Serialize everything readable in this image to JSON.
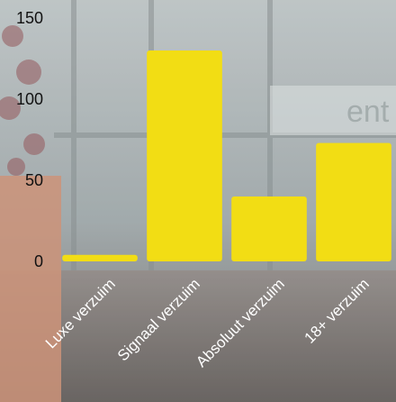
{
  "chart_data": {
    "type": "bar",
    "categories": [
      "Luxe verzuim",
      "Signaal verzuim",
      "Absoluut verzuim",
      "18+ verzuim"
    ],
    "values": [
      4,
      130,
      40,
      73
    ],
    "ylim": [
      0,
      150
    ],
    "yticks": [
      "0",
      "50",
      "100",
      "150"
    ],
    "title": "",
    "xlabel": "",
    "ylabel": "",
    "grid": false,
    "bar_color": "#F2DD14"
  },
  "background": {
    "description_color_top": "#9aa2a4",
    "floor_color": "#6e6a66",
    "planter_color": "#c98b6e",
    "sign_text": "ent"
  }
}
